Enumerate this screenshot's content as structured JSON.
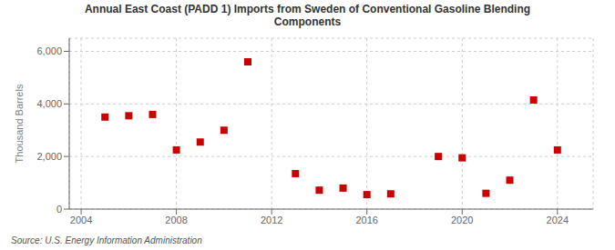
{
  "chart_data": {
    "type": "scatter",
    "title": "Annual East Coast (PADD 1) Imports from Sweden of Conventional Gasoline Blending\nComponents",
    "ylabel": "Thousand Barrels",
    "annotations": [
      "Source: U.S. Energy Information Administration"
    ],
    "color": "#cc0000",
    "marker": "square",
    "grid": true,
    "xlim": [
      2003.5,
      2025.5
    ],
    "xticks": [
      2004,
      2008,
      2012,
      2016,
      2020,
      2024
    ],
    "ylim": [
      0,
      6500
    ],
    "yticks": [
      0,
      {
        "value": 2000,
        "label": "2,000"
      },
      {
        "value": 4000,
        "label": "4,000"
      },
      {
        "value": 6000,
        "label": "6,000"
      }
    ],
    "x": [
      2005,
      2006,
      2007,
      2008,
      2009,
      2010,
      2011,
      2013,
      2014,
      2015,
      2016,
      2017,
      2019,
      2020,
      2021,
      2022,
      2023,
      2024
    ],
    "values": [
      3500,
      3550,
      3600,
      2250,
      2550,
      3000,
      5600,
      1350,
      720,
      800,
      550,
      580,
      2000,
      1950,
      600,
      1100,
      4150,
      2250
    ]
  }
}
